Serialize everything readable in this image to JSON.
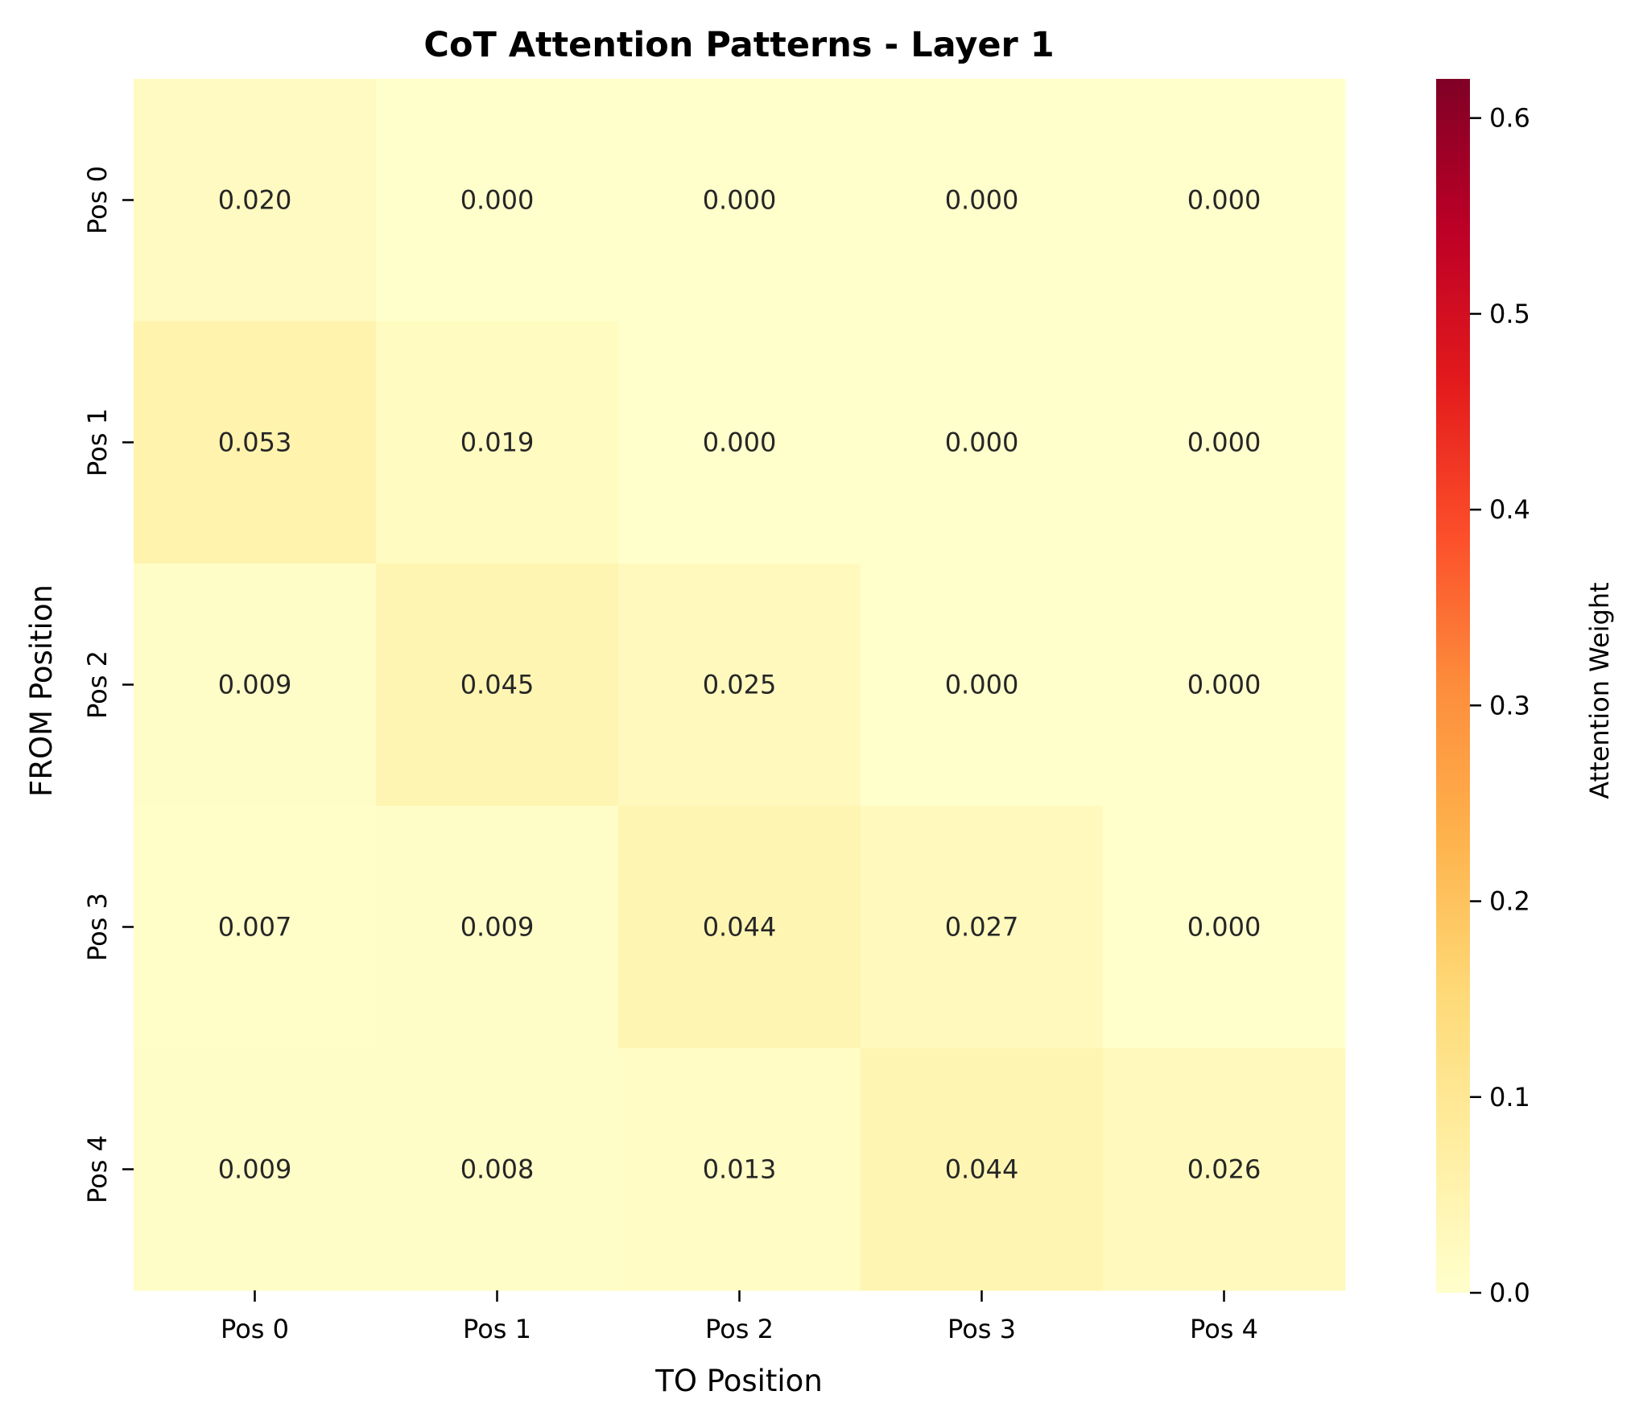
{
  "chart_data": {
    "type": "heatmap",
    "title": "CoT Attention Patterns - Layer 1",
    "xlabel": "TO Position",
    "ylabel": "FROM Position",
    "x_categories": [
      "Pos 0",
      "Pos 1",
      "Pos 2",
      "Pos 3",
      "Pos 4"
    ],
    "y_categories": [
      "Pos 0",
      "Pos 1",
      "Pos 2",
      "Pos 3",
      "Pos 4"
    ],
    "values": [
      [
        0.02,
        0.0,
        0.0,
        0.0,
        0.0
      ],
      [
        0.053,
        0.019,
        0.0,
        0.0,
        0.0
      ],
      [
        0.009,
        0.045,
        0.025,
        0.0,
        0.0
      ],
      [
        0.007,
        0.009,
        0.044,
        0.027,
        0.0
      ],
      [
        0.009,
        0.008,
        0.013,
        0.044,
        0.026
      ]
    ],
    "value_format": "0.000",
    "colorbar": {
      "label": "Attention Weight",
      "range": [
        0.0,
        0.62
      ],
      "ticks": [
        0.0,
        0.1,
        0.2,
        0.3,
        0.4,
        0.5,
        0.6
      ],
      "tick_labels": [
        "0.0",
        "0.1",
        "0.2",
        "0.3",
        "0.4",
        "0.5",
        "0.6"
      ],
      "colormap": "YlOrRd",
      "colors": [
        "#ffffcc",
        "#ffeda0",
        "#fed976",
        "#feb24c",
        "#fd8d3c",
        "#fc4e2a",
        "#e31a1c",
        "#bd0026",
        "#800026"
      ]
    },
    "grid": false
  }
}
